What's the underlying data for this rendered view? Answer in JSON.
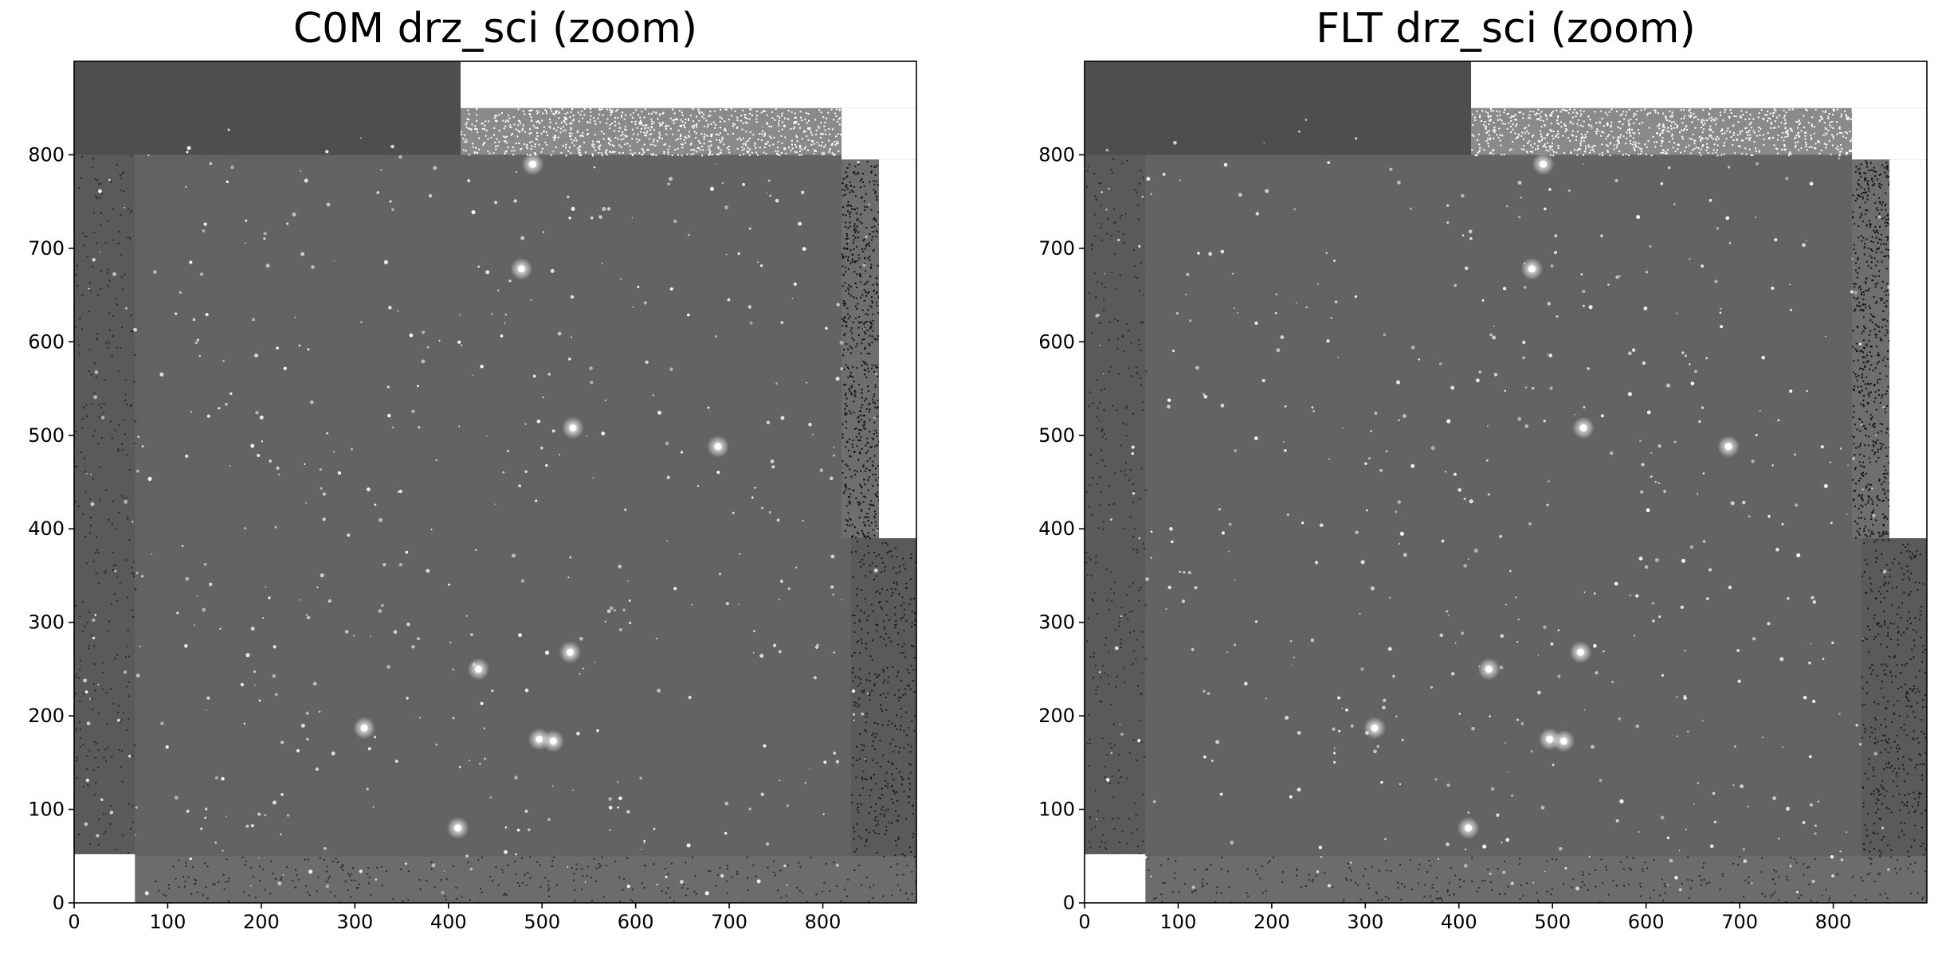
{
  "chart_data": [
    {
      "type": "heatmap",
      "title": "C0M drz_sci (zoom)",
      "colormap": "grayscale",
      "xlim": [
        0,
        900
      ],
      "ylim": [
        0,
        900
      ],
      "xticks": [
        0,
        100,
        200,
        300,
        400,
        500,
        600,
        700,
        800
      ],
      "yticks": [
        0,
        100,
        200,
        300,
        400,
        500,
        600,
        700,
        800
      ],
      "grid": false,
      "bright_sources": [
        {
          "x": 478,
          "y": 678
        },
        {
          "x": 688,
          "y": 488
        },
        {
          "x": 432,
          "y": 250
        },
        {
          "x": 410,
          "y": 80
        },
        {
          "x": 497,
          "y": 175
        },
        {
          "x": 512,
          "y": 173
        },
        {
          "x": 310,
          "y": 187
        },
        {
          "x": 530,
          "y": 268
        },
        {
          "x": 533,
          "y": 508
        },
        {
          "x": 490,
          "y": 790
        }
      ],
      "empty_regions": [
        {
          "x0": 413,
          "x1": 900,
          "y0": 850,
          "y1": 900
        },
        {
          "x0": 820,
          "x1": 900,
          "y0": 795,
          "y1": 850
        },
        {
          "x0": 860,
          "x1": 900,
          "y0": 390,
          "y1": 795
        },
        {
          "x0": 0,
          "x1": 65,
          "y0": 0,
          "y1": 52
        }
      ]
    },
    {
      "type": "heatmap",
      "title": "FLT drz_sci (zoom)",
      "colormap": "grayscale",
      "xlim": [
        0,
        900
      ],
      "ylim": [
        0,
        900
      ],
      "xticks": [
        0,
        100,
        200,
        300,
        400,
        500,
        600,
        700,
        800
      ],
      "yticks": [
        0,
        100,
        200,
        300,
        400,
        500,
        600,
        700,
        800
      ],
      "grid": false,
      "bright_sources": [
        {
          "x": 478,
          "y": 678
        },
        {
          "x": 688,
          "y": 488
        },
        {
          "x": 432,
          "y": 250
        },
        {
          "x": 410,
          "y": 80
        },
        {
          "x": 497,
          "y": 175
        },
        {
          "x": 512,
          "y": 173
        },
        {
          "x": 310,
          "y": 187
        },
        {
          "x": 530,
          "y": 268
        },
        {
          "x": 533,
          "y": 508
        },
        {
          "x": 490,
          "y": 790
        }
      ],
      "empty_regions": [
        {
          "x0": 413,
          "x1": 900,
          "y0": 850,
          "y1": 900
        },
        {
          "x0": 820,
          "x1": 900,
          "y0": 795,
          "y1": 850
        },
        {
          "x0": 860,
          "x1": 900,
          "y0": 390,
          "y1": 795
        },
        {
          "x0": 0,
          "x1": 65,
          "y0": 0,
          "y1": 52
        }
      ]
    }
  ],
  "colors": {
    "image_mid": "#636363",
    "image_dark": "#3a3a3a",
    "star": "#ffffff",
    "axes": "#000000"
  }
}
